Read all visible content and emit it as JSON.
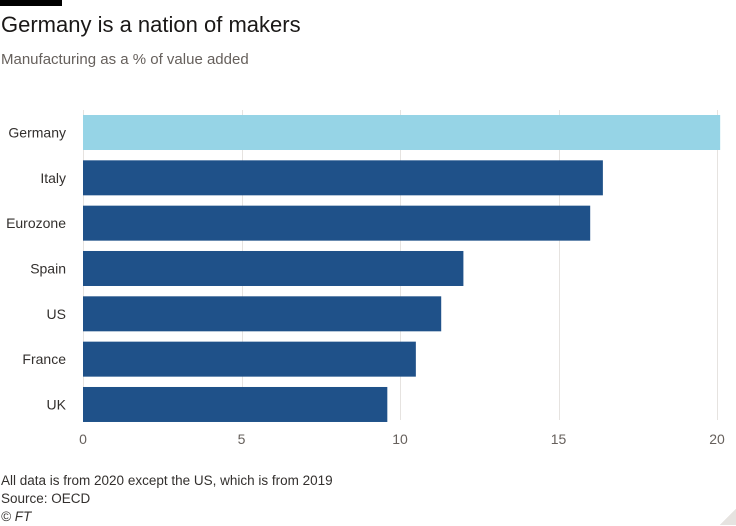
{
  "header": {
    "title": "Germany is a nation of makers",
    "subtitle": "Manufacturing as a % of value added"
  },
  "footer": {
    "note": "All data is from 2020 except the US, which is from 2019",
    "source": "Source: OECD",
    "credit": "© FT"
  },
  "colors": {
    "highlight": "#96d4e6",
    "bar": "#1f5189",
    "grid": "#e6e3e0",
    "text": "#33302e",
    "muted": "#66605c"
  },
  "chart_data": {
    "type": "bar",
    "orientation": "horizontal",
    "title": "Germany is a nation of makers",
    "subtitle": "Manufacturing as a % of value added",
    "categories": [
      "Germany",
      "Italy",
      "Eurozone",
      "Spain",
      "US",
      "France",
      "UK"
    ],
    "values": [
      20.1,
      16.4,
      16.0,
      12.0,
      11.3,
      10.5,
      9.6
    ],
    "highlight": [
      "Germany"
    ],
    "xlabel": "",
    "ylabel": "",
    "xlim": [
      0,
      20
    ],
    "xticks": [
      0,
      5,
      10,
      15,
      20
    ],
    "grid": true,
    "legend": "none"
  }
}
